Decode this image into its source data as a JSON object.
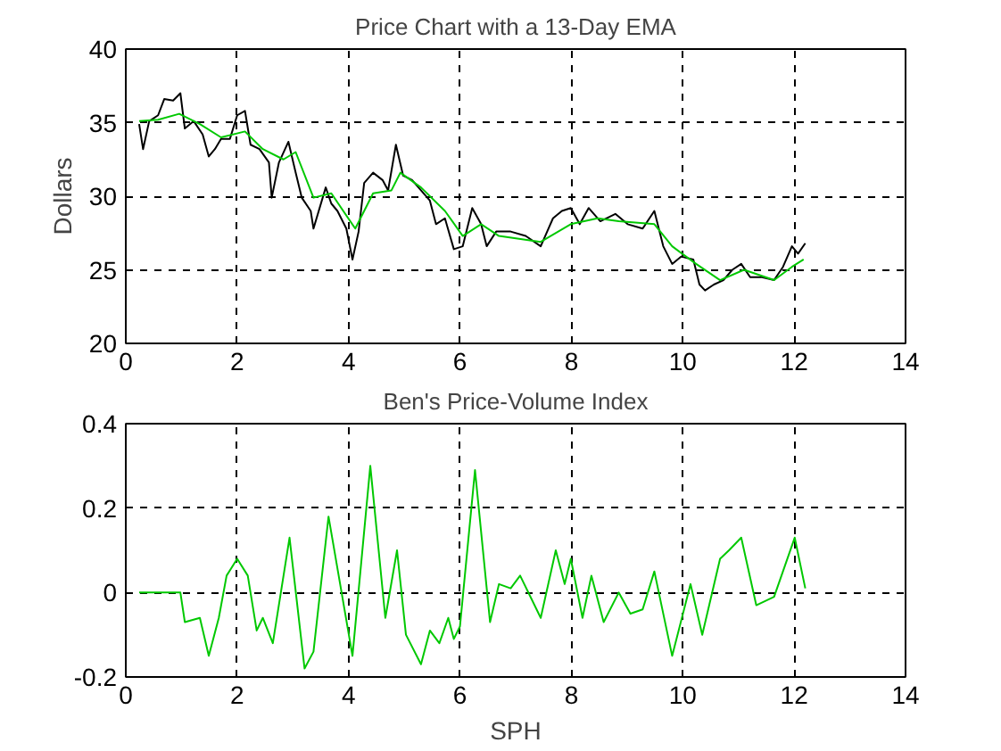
{
  "chart_data": [
    {
      "type": "line",
      "title": "Price Chart with a 13-Day EMA",
      "ylabel": "Dollars",
      "xlim": [
        0,
        14
      ],
      "xticks": [
        0,
        2,
        4,
        6,
        8,
        10,
        12,
        14
      ],
      "ylim": [
        20,
        40
      ],
      "yticks": [
        20,
        25,
        30,
        35,
        40
      ],
      "grid": true,
      "series": [
        {
          "color": "#000000",
          "x": [
            0.24,
            0.31,
            0.42,
            0.58,
            0.69,
            0.85,
            0.98,
            1.06,
            1.22,
            1.38,
            1.49,
            1.6,
            1.71,
            1.87,
            2.0,
            2.14,
            2.24,
            2.4,
            2.57,
            2.62,
            2.75,
            2.92,
            3.05,
            3.16,
            3.32,
            3.37,
            3.59,
            3.69,
            3.8,
            3.96,
            4.07,
            4.18,
            4.28,
            4.44,
            4.61,
            4.71,
            4.85,
            4.98,
            5.14,
            5.3,
            5.46,
            5.57,
            5.73,
            5.89,
            6.05,
            6.22,
            6.38,
            6.48,
            6.65,
            6.91,
            7.18,
            7.45,
            7.67,
            7.83,
            7.99,
            8.15,
            8.31,
            8.52,
            8.79,
            9.01,
            9.28,
            9.49,
            9.65,
            9.81,
            9.97,
            10.19,
            10.3,
            10.4,
            10.56,
            10.73,
            10.89,
            11.05,
            11.21,
            11.42,
            11.64,
            11.8,
            11.96,
            12.07,
            12.2
          ],
          "values": [
            34.9,
            33.2,
            35.1,
            35.5,
            36.6,
            36.5,
            37.0,
            34.6,
            35.1,
            34.2,
            32.7,
            33.2,
            33.9,
            33.9,
            35.5,
            35.8,
            33.5,
            33.2,
            32.3,
            29.9,
            32.3,
            33.7,
            31.6,
            29.9,
            29.0,
            27.8,
            30.6,
            29.5,
            29.0,
            27.8,
            25.7,
            27.6,
            30.9,
            31.6,
            31.1,
            30.4,
            33.5,
            31.4,
            31.1,
            30.4,
            29.7,
            28.1,
            28.5,
            26.4,
            26.6,
            29.2,
            28.1,
            26.6,
            27.6,
            27.6,
            27.3,
            26.6,
            28.5,
            29.0,
            29.2,
            28.1,
            29.2,
            28.3,
            28.8,
            28.1,
            27.8,
            29.0,
            26.6,
            25.4,
            25.9,
            25.7,
            24.0,
            23.6,
            24.0,
            24.3,
            25.0,
            25.4,
            24.5,
            24.5,
            24.3,
            25.2,
            26.6,
            26.1,
            26.8
          ]
        },
        {
          "color": "#00c800",
          "x": [
            0.24,
            0.58,
            0.96,
            1.33,
            1.71,
            2.14,
            2.46,
            2.83,
            3.05,
            3.37,
            3.69,
            4.12,
            4.44,
            4.77,
            4.93,
            5.3,
            5.73,
            6.05,
            6.38,
            6.7,
            7.45,
            7.99,
            8.47,
            8.85,
            9.49,
            9.81,
            10.24,
            10.67,
            11.1,
            11.64,
            11.96,
            12.17
          ],
          "values": [
            35.1,
            35.2,
            35.6,
            34.9,
            34.0,
            34.4,
            33.2,
            32.5,
            33.0,
            29.9,
            30.2,
            27.8,
            30.2,
            30.4,
            31.6,
            30.6,
            29.0,
            27.3,
            28.1,
            27.3,
            26.9,
            28.1,
            28.5,
            28.3,
            28.1,
            26.6,
            25.4,
            24.3,
            25.0,
            24.3,
            25.2,
            25.7
          ]
        }
      ]
    },
    {
      "type": "line",
      "title": "Ben's Price-Volume Index",
      "xlabel": "SPH",
      "xlim": [
        0,
        14
      ],
      "xticks": [
        0,
        2,
        4,
        6,
        8,
        10,
        12,
        14
      ],
      "ylim": [
        -0.2,
        0.4
      ],
      "yticks": [
        -0.2,
        0,
        0.2,
        0.4
      ],
      "grid": true,
      "series": [
        {
          "color": "#00c800",
          "x": [
            0.24,
            0.98,
            1.06,
            1.33,
            1.49,
            1.67,
            1.81,
            2.0,
            2.19,
            2.35,
            2.46,
            2.64,
            2.94,
            3.21,
            3.37,
            3.64,
            4.07,
            4.39,
            4.66,
            4.87,
            5.03,
            5.3,
            5.46,
            5.63,
            5.79,
            5.89,
            6.0,
            6.27,
            6.54,
            6.7,
            6.91,
            7.08,
            7.45,
            7.72,
            7.88,
            7.99,
            8.2,
            8.36,
            8.58,
            8.85,
            9.06,
            9.28,
            9.49,
            9.81,
            10.14,
            10.35,
            10.67,
            10.83,
            11.05,
            11.32,
            11.64,
            12.01,
            12.2
          ],
          "values": [
            0,
            0,
            -0.07,
            -0.06,
            -0.15,
            -0.06,
            0.04,
            0.08,
            0.04,
            -0.09,
            -0.06,
            -0.12,
            0.13,
            -0.18,
            -0.14,
            0.18,
            -0.15,
            0.3,
            -0.06,
            0.1,
            -0.1,
            -0.17,
            -0.09,
            -0.12,
            -0.06,
            -0.11,
            -0.08,
            0.29,
            -0.07,
            0.02,
            0.01,
            0.04,
            -0.06,
            0.1,
            0.02,
            0.08,
            -0.06,
            0.04,
            -0.07,
            0,
            -0.05,
            -0.04,
            0.05,
            -0.15,
            0.02,
            -0.1,
            0.08,
            0.1,
            0.13,
            -0.03,
            -0.01,
            0.13,
            0.01
          ]
        }
      ]
    }
  ]
}
